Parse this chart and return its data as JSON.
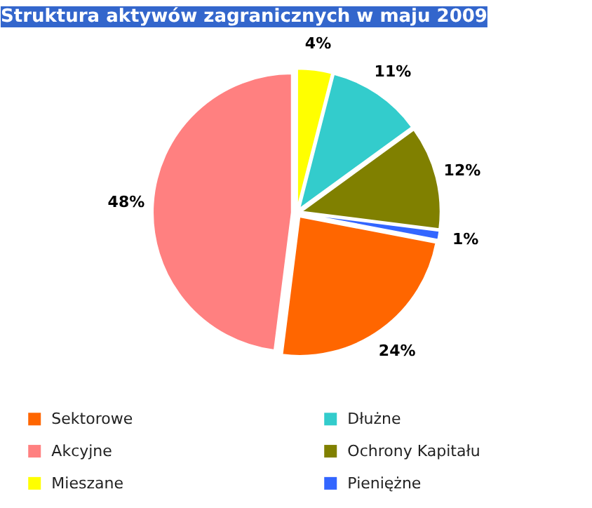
{
  "chart_data": {
    "type": "pie",
    "title": "Struktura aktywów zagranicznych w maju 2009",
    "categories": [
      "Sektorowe",
      "Akcyjne",
      "Mieszane",
      "Dłużne",
      "Ochrony Kapitału",
      "Pieniężne"
    ],
    "values": [
      24,
      48,
      4,
      11,
      12,
      1
    ],
    "colors": [
      "#ff6600",
      "#ff8080",
      "#ffff00",
      "#33cccc",
      "#808000",
      "#3366ff"
    ],
    "value_labels": [
      "24%",
      "48%",
      "4%",
      "11%",
      "12%",
      "1%"
    ],
    "legend": "bottom"
  }
}
